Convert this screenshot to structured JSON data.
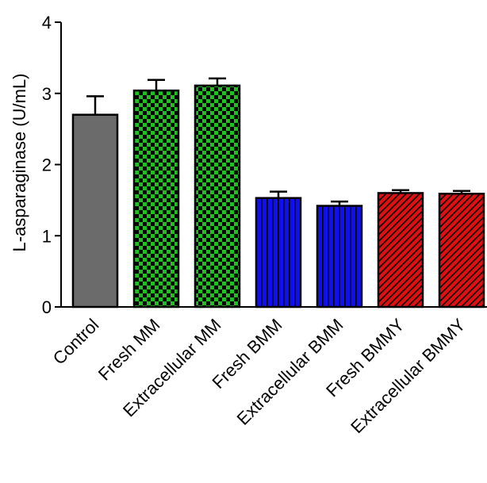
{
  "chart_data": {
    "type": "bar",
    "title": "",
    "xlabel": "",
    "ylabel": "L-asparaginase (U/mL)",
    "ylim": [
      0,
      4
    ],
    "yticks": [
      0,
      1,
      2,
      3,
      4
    ],
    "grid": false,
    "categories": [
      "Control",
      "Fresh MM",
      "Extracellular MM",
      "Fresh BMM",
      "Extracellular BMM",
      "Fresh BMMY",
      "Extracellular BMMY"
    ],
    "values": [
      2.7,
      3.04,
      3.11,
      1.53,
      1.42,
      1.6,
      1.59
    ],
    "errors": [
      0.26,
      0.15,
      0.1,
      0.09,
      0.06,
      0.04,
      0.04
    ],
    "colors": [
      "#6b6b6b",
      "#1fc11f",
      "#1fc11f",
      "#1010ee",
      "#1010ee",
      "#e01010",
      "#e01010"
    ],
    "patterns": [
      "solid",
      "checker",
      "checker",
      "vertical-lines",
      "vertical-lines",
      "diagonal-hatch",
      "diagonal-hatch"
    ]
  }
}
